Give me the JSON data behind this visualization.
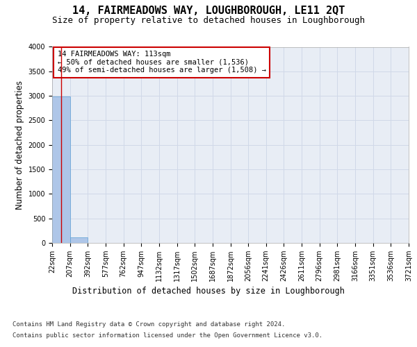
{
  "title": "14, FAIRMEADOWS WAY, LOUGHBOROUGH, LE11 2QT",
  "subtitle": "Size of property relative to detached houses in Loughborough",
  "xlabel": "Distribution of detached houses by size in Loughborough",
  "ylabel": "Number of detached properties",
  "footer_line1": "Contains HM Land Registry data © Crown copyright and database right 2024.",
  "footer_line2": "Contains public sector information licensed under the Open Government Licence v3.0.",
  "annotation_line1": "14 FAIRMEADOWS WAY: 113sqm",
  "annotation_line2": "← 50% of detached houses are smaller (1,536)",
  "annotation_line3": "49% of semi-detached houses are larger (1,508) →",
  "bin_edges": [
    22,
    207,
    392,
    577,
    762,
    947,
    1132,
    1317,
    1502,
    1687,
    1872,
    2056,
    2241,
    2426,
    2611,
    2796,
    2981,
    3166,
    3351,
    3536,
    3721
  ],
  "bar_heights": [
    2990,
    110,
    2,
    1,
    0,
    0,
    0,
    0,
    0,
    0,
    0,
    0,
    0,
    0,
    0,
    0,
    0,
    0,
    0,
    0
  ],
  "bar_color": "#aec6e8",
  "bar_edge_color": "#5a9fd4",
  "property_line_x": 113,
  "property_line_color": "#cc0000",
  "ylim": [
    0,
    4000
  ],
  "yticks": [
    0,
    500,
    1000,
    1500,
    2000,
    2500,
    3000,
    3500,
    4000
  ],
  "grid_color": "#d0d8e8",
  "background_color": "#e8edf5",
  "fig_background": "#ffffff",
  "title_fontsize": 11,
  "subtitle_fontsize": 9,
  "axis_label_fontsize": 8.5,
  "tick_fontsize": 7,
  "annotation_fontsize": 7.5,
  "footer_fontsize": 6.5
}
